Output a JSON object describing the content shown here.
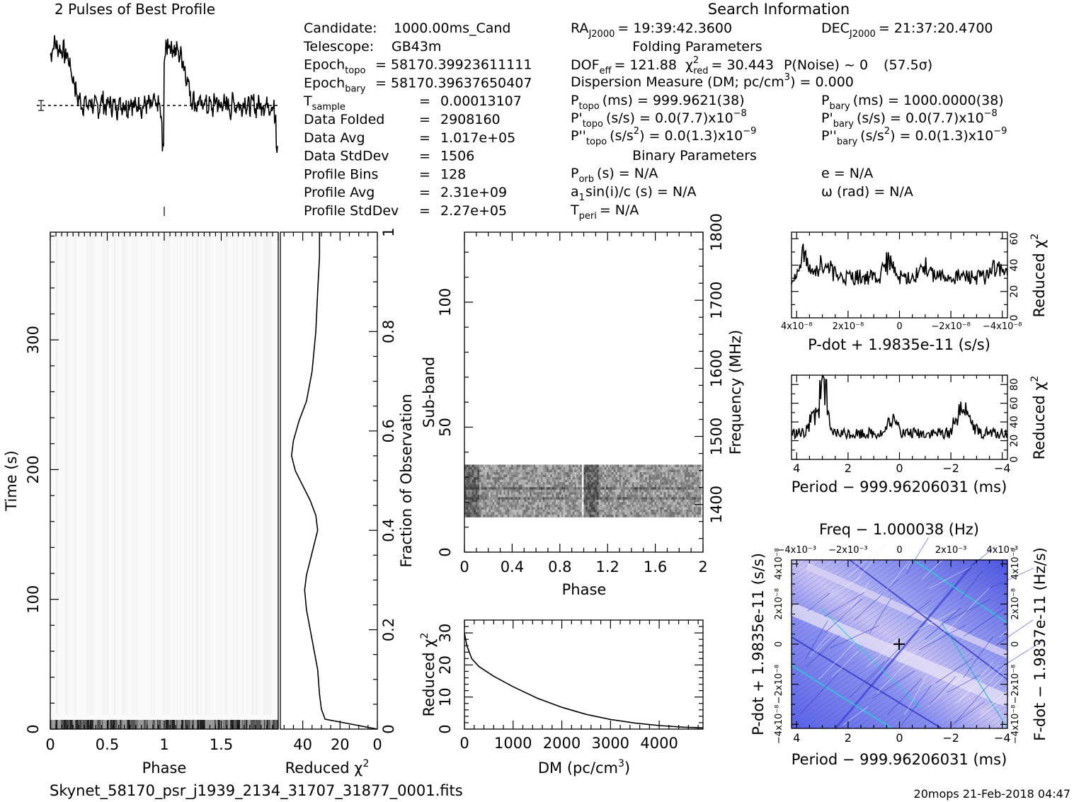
{
  "footer": {
    "filename": "Skynet_58170_psr_j1939_2134_31707_31877_0001.fits",
    "stamp": "20mops 21-Feb-2018 04:47"
  },
  "info": {
    "section_title": "Search Information",
    "col1": [
      {
        "label": "Candidate:",
        "value": "1000.00ms_Cand"
      },
      {
        "label": "Telescope:",
        "value": "GB43m"
      },
      {
        "label": "Epoch",
        "sub": "topo",
        "value": "= 58170.39923611111"
      },
      {
        "label": "Epoch",
        "sub": "bary",
        "value": "= 58170.39637650407"
      },
      {
        "label": "T",
        "sub": "sample",
        "eq": "=",
        "value": "0.00013107"
      },
      {
        "label": "Data Folded",
        "eq": "=",
        "value": "2908160"
      },
      {
        "label": "Data Avg",
        "eq": "=",
        "value": "1.017e+05"
      },
      {
        "label": "Data StdDev",
        "eq": "=",
        "value": "1506"
      },
      {
        "label": "Profile Bins",
        "eq": "=",
        "value": "128"
      },
      {
        "label": "Profile Avg",
        "eq": "=",
        "value": "2.31e+09"
      },
      {
        "label": "Profile StdDev",
        "eq": "=",
        "value": "2.27e+05"
      }
    ],
    "ra": {
      "label": "RA",
      "sub": "J2000",
      "value": "= 19:39:42.3600"
    },
    "dec": {
      "label": "DEC",
      "sub": "J2000",
      "value": "= 21:37:20.4700"
    },
    "folding_title": "Folding Parameters",
    "dof": "DOF",
    "dof_sub": "eff",
    "dof_value": "= 121.88",
    "chi_label": "χ",
    "chi_sup": "2",
    "chi_sub": "red",
    "chi_value": "= 30.443",
    "pnoise": "P(Noise) ~ 0",
    "sigma": "(57.5σ)",
    "dm_line": "Dispersion Measure (DM; pc/cm",
    "dm_sup": "3",
    "dm_value": ") = 0.000",
    "ptopo": {
      "label": "P",
      "sub": "topo",
      "value": "(ms) =  999.9621(38)"
    },
    "pbary": {
      "label": "P",
      "sub": "bary",
      "value": "(ms) =  1000.0000(38)"
    },
    "pdtopo": {
      "label": "P'",
      "sub": "topo",
      "value": "(s/s) = 0.0(7.7)x10",
      "exp": "−8"
    },
    "pdbary": {
      "label": "P'",
      "sub": "bary",
      "value": "(s/s) = 0.0(7.7)x10",
      "exp": "−8"
    },
    "pddtopo": {
      "label": "P''",
      "sub": "topo",
      "value": "(s/s",
      "sup2": "2",
      "value2": ") = 0.0(1.3)x10",
      "exp": "−9"
    },
    "pddbary": {
      "label": "P''",
      "sub": "bary",
      "value": "(s/s",
      "sup2": "2",
      "value2": ") = 0.0(1.3)x10",
      "exp": "−9"
    },
    "binary_title": "Binary Parameters",
    "porb": {
      "label": "P",
      "sub": "orb",
      "value": "(s) = N/A"
    },
    "asini": {
      "label": "a",
      "sub": "1",
      "value": "sin(i)/c (s) = N/A"
    },
    "tperi": {
      "label": "T",
      "sub": "peri",
      "value": "= N/A"
    },
    "ecc": "e = N/A",
    "omega": "ω (rad) = N/A"
  },
  "chart_data": [
    {
      "type": "line",
      "title": "2 Pulses of Best Profile",
      "x_range": [
        0,
        2
      ],
      "profile": [
        0.62,
        0.7,
        0.78,
        0.74,
        0.69,
        0.71,
        0.66,
        0.7,
        0.6,
        0.64,
        0.55,
        0.48,
        0.35,
        0.3,
        0.2,
        0.05,
        0.1,
        0.03,
        -0.02,
        0.06,
        0.02,
        -0.03,
        0.08,
        0.03,
        -0.05,
        0.02,
        0.0,
        -0.06,
        0.05,
        0.08,
        0.0,
        -0.03,
        0.02,
        0.05,
        -0.04,
        0.03,
        0.0,
        -0.08,
        0.06,
        0.02,
        -0.02,
        0.04,
        0.0,
        -0.05,
        0.03,
        0.07,
        -0.02,
        0.01,
        -0.03,
        0.02,
        0.05,
        -0.06,
        0.0,
        0.03,
        -0.02,
        0.04,
        -0.03,
        0.01,
        0.06,
        -0.04,
        0.02,
        0.0,
        -0.2,
        -0.55
      ],
      "mean_level": 0.0
    },
    {
      "type": "heatmap",
      "title": "",
      "xlabel": "Phase",
      "ylabel": "Time (s)",
      "x_ticks": [
        "0",
        "0.5",
        "1",
        "1.5"
      ],
      "y_ticks": [
        "0",
        "100",
        "200",
        "300"
      ],
      "x_range": [
        0,
        2
      ],
      "y_range": [
        0,
        383
      ]
    },
    {
      "type": "line",
      "xlabel": "Reduced χ",
      "xlabel_sup": "2",
      "ylabel_right": "Fraction of Observation",
      "x_ticks": [
        "40",
        "20",
        "0"
      ],
      "y_ticks": [
        "0",
        "0.2",
        "0.4",
        "0.6",
        "0.8",
        "1"
      ],
      "x_range": [
        52,
        0
      ],
      "y_range": [
        0,
        1
      ],
      "x": [
        0,
        14,
        28,
        30,
        31,
        32,
        34,
        36,
        38,
        39,
        38,
        36,
        34,
        32,
        33,
        36,
        40,
        44,
        46,
        45,
        42,
        38,
        35,
        33,
        32,
        31,
        31
      ],
      "y": [
        0,
        0.01,
        0.02,
        0.04,
        0.07,
        0.12,
        0.16,
        0.2,
        0.24,
        0.28,
        0.31,
        0.34,
        0.37,
        0.4,
        0.43,
        0.46,
        0.49,
        0.52,
        0.55,
        0.58,
        0.62,
        0.66,
        0.72,
        0.8,
        0.88,
        0.95,
        1.0
      ]
    },
    {
      "type": "heatmap",
      "xlabel": "Phase",
      "ylabel": "Sub-band",
      "ylabel_right": "Frequency (MHz)",
      "x_ticks": [
        "0",
        "0.4",
        "0.8",
        "1.2",
        "1.6",
        "2"
      ],
      "y_ticks": [
        "0",
        "50",
        "100"
      ],
      "y_right_ticks": [
        "1400",
        "1500",
        "1600",
        "1700",
        "1800"
      ],
      "x_range": [
        0,
        2
      ],
      "y_range": [
        0,
        128
      ],
      "active_subbands": [
        14,
        35
      ]
    },
    {
      "type": "line",
      "xlabel": "DM (pc/cm",
      "xlabel_sup": "3",
      "xlabel_end": ")",
      "ylabel": "Reduced χ",
      "ylabel_sup": "2",
      "x_ticks": [
        "0",
        "1000",
        "2000",
        "3000",
        "4000"
      ],
      "y_ticks": [
        "0",
        "10",
        "20",
        "30"
      ],
      "x_range": [
        0,
        4900
      ],
      "y_range": [
        0,
        34
      ],
      "x": [
        0,
        50,
        150,
        300,
        600,
        1000,
        1500,
        2000,
        2500,
        3000,
        3500,
        4000,
        4500,
        4900
      ],
      "y": [
        30,
        26,
        22,
        19.5,
        16.5,
        13.2,
        9.6,
        6.8,
        4.6,
        3.0,
        1.9,
        1.1,
        0.6,
        0.4
      ]
    },
    {
      "type": "line",
      "xlabel": "P-dot + 1.9835e-11 (s/s)",
      "ylabel_right": "Reduced χ",
      "ylabel_right_sup": "2",
      "x_ticks": [
        "4x10⁻⁸",
        "2x10⁻⁸",
        "0",
        "−2x10⁻⁸",
        "−4x10⁻⁸"
      ],
      "y_right_ticks": [
        "0",
        "20",
        "40",
        "60"
      ],
      "x_range": [
        4.2e-08,
        -4.2e-08
      ],
      "y_range": [
        0,
        65
      ],
      "baseline": 31
    },
    {
      "type": "line",
      "xlabel": "Period − 999.96206031 (ms)",
      "ylabel_right": "Reduced χ",
      "ylabel_right_sup": "2",
      "x_ticks": [
        "4",
        "2",
        "0",
        "−2",
        "−4"
      ],
      "y_right_ticks": [
        "0",
        "20",
        "40",
        "60",
        "80"
      ],
      "x_range": [
        4.2,
        -4.2
      ],
      "y_range": [
        0,
        90
      ],
      "baseline": 28
    },
    {
      "type": "heatmap",
      "title": "Freq − 1.000038 (Hz)",
      "xlabel": "Period − 999.96206031 (ms)",
      "ylabel": "P-dot + 1.9835e-11 (s/s)",
      "ylabel_right": "F-dot − 1.9837e-11 (Hz/s)",
      "x_ticks": [
        "4",
        "2",
        "0",
        "−2",
        "−4"
      ],
      "top_ticks": [
        "−4x10⁻³",
        "−2x10⁻³",
        "0",
        "2x10⁻³",
        "4x10⁻³"
      ],
      "y_ticks": [
        "4x10⁻⁸",
        "2x10⁻⁸",
        "0",
        "−2x10⁻⁸",
        "−4x10⁻⁸"
      ],
      "y_right_ticks": [
        "−4x10⁻⁸",
        "−2x10⁻⁸",
        "0",
        "2x10⁻⁸",
        "4x10⁻⁸"
      ],
      "x_range": [
        4.2,
        -4.2
      ],
      "y_range": [
        -4.2e-08,
        4.2e-08
      ]
    }
  ]
}
